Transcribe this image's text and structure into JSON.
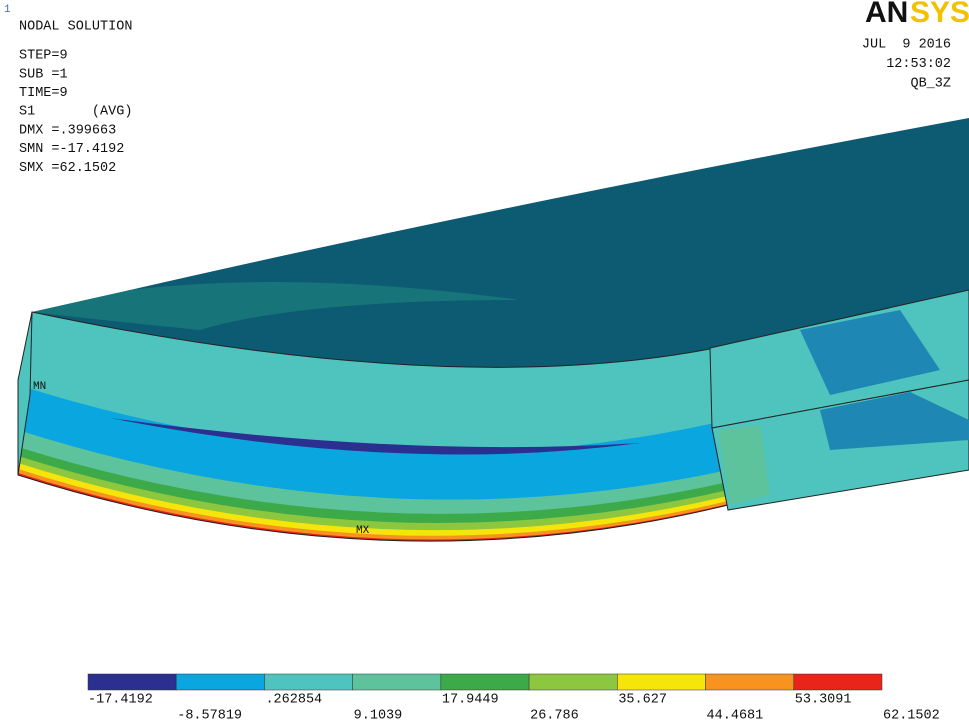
{
  "viewport_number": "1",
  "info": [
    "NODAL SOLUTION",
    "STEP=9",
    "SUB =1",
    "TIME=9",
    "S1       (AVG)",
    "DMX =.399663",
    "SMN =-17.4192",
    "SMX =62.1502"
  ],
  "logo": [
    "AN",
    "SYS"
  ],
  "stamp": [
    "JUL  9 2016",
    "12:53:02",
    "QB_3Z"
  ],
  "markers": {
    "min": "MN",
    "max": "MX"
  },
  "legend": {
    "colors": [
      "#2b2f8f",
      "#0aa6e0",
      "#4fc3be",
      "#5cc39c",
      "#3daa4a",
      "#8dc63f",
      "#f5e50a",
      "#f7931e",
      "#e8241b"
    ],
    "labels": [
      "-17.4192",
      "-8.57819",
      ".262854",
      "9.1039",
      "17.9449",
      "26.786",
      "35.627",
      "44.4681",
      "53.3091",
      "62.1502"
    ]
  }
}
